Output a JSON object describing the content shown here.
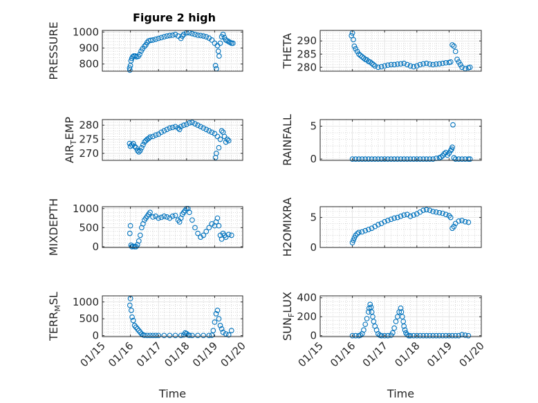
{
  "figure": {
    "title": "Figure 2 high"
  },
  "chart_data": [
    {
      "type": "scatter",
      "id": "pressure",
      "ylabel": "PRESSURE",
      "ylabel_parts": [
        [
          "PRESSURE",
          0
        ]
      ],
      "ylim": [
        755,
        1010
      ],
      "yticks": [
        800,
        900,
        1000
      ],
      "yticklabels": [
        "800",
        "900",
        "1000"
      ],
      "xlabel": "",
      "grid": true,
      "series": [
        {
          "x": [
            15.97,
            15.98,
            16.0,
            16.02,
            16.05,
            16.08,
            16.12,
            16.17,
            16.22,
            16.28,
            16.33,
            16.38,
            16.43,
            16.5,
            16.55,
            16.6,
            16.65,
            16.72,
            16.8,
            16.9,
            17.0,
            17.1,
            17.2,
            17.3,
            17.4,
            17.5,
            17.6,
            17.7,
            17.8,
            17.85,
            17.9,
            18.0,
            18.1,
            18.2,
            18.3,
            18.4,
            18.5,
            18.6,
            18.7,
            18.8,
            18.9,
            19.0,
            19.03,
            19.06,
            19.1,
            19.13,
            19.16,
            19.2,
            19.25,
            19.3,
            19.35,
            19.4,
            19.45,
            19.5,
            19.55,
            19.6,
            19.65
          ],
          "y": [
            775,
            762,
            790,
            820,
            835,
            845,
            850,
            850,
            845,
            848,
            860,
            880,
            895,
            910,
            920,
            935,
            945,
            948,
            950,
            955,
            960,
            965,
            970,
            975,
            978,
            980,
            985,
            975,
            960,
            975,
            985,
            995,
            995,
            990,
            985,
            980,
            978,
            975,
            970,
            962,
            950,
            930,
            790,
            770,
            915,
            880,
            850,
            930,
            970,
            985,
            965,
            950,
            945,
            940,
            935,
            930,
            930
          ]
        }
      ]
    },
    {
      "type": "scatter",
      "id": "theta",
      "ylabel": "THETA",
      "ylabel_parts": [
        [
          "THETA",
          0
        ]
      ],
      "ylim": [
        278.5,
        294
      ],
      "yticks": [
        280,
        285,
        290
      ],
      "yticklabels": [
        "280",
        "285",
        "290"
      ],
      "xlabel": "",
      "grid": true,
      "series": [
        {
          "x": [
            15.97,
            16.0,
            16.03,
            16.06,
            16.1,
            16.15,
            16.2,
            16.25,
            16.3,
            16.35,
            16.4,
            16.45,
            16.5,
            16.55,
            16.6,
            16.65,
            16.7,
            16.8,
            16.9,
            17.0,
            17.1,
            17.2,
            17.3,
            17.4,
            17.5,
            17.6,
            17.7,
            17.8,
            17.9,
            18.0,
            18.1,
            18.2,
            18.3,
            18.4,
            18.5,
            18.6,
            18.7,
            18.8,
            18.9,
            19.0,
            19.05,
            19.1,
            19.15,
            19.2,
            19.25,
            19.3,
            19.35,
            19.4,
            19.5,
            19.6,
            19.65
          ],
          "y": [
            292,
            293,
            290.5,
            288,
            287,
            286,
            285,
            284.5,
            284,
            283.5,
            283,
            282.8,
            282.2,
            282,
            281.5,
            281,
            280.5,
            280,
            280.2,
            280.5,
            280.8,
            281,
            281,
            281.2,
            281.3,
            281.5,
            281,
            280.5,
            280.2,
            280.5,
            281,
            281.3,
            281.5,
            281.2,
            281,
            281.2,
            281.3,
            281.5,
            281.7,
            281.8,
            282,
            288.5,
            288,
            286,
            283,
            282,
            281,
            280,
            279.5,
            279.8,
            280
          ]
        }
      ]
    },
    {
      "type": "scatter",
      "id": "air_temp",
      "ylabel": "AIR_TEMP",
      "ylabel_parts": [
        [
          "AIR",
          0
        ],
        [
          "T",
          1
        ],
        [
          "EMP",
          0
        ]
      ],
      "ylim": [
        267.5,
        282
      ],
      "yticks": [
        270,
        275,
        280
      ],
      "yticklabels": [
        "270",
        "275",
        "280"
      ],
      "xlabel": "",
      "grid": true,
      "series": [
        {
          "x": [
            15.97,
            16.0,
            16.05,
            16.1,
            16.15,
            16.2,
            16.25,
            16.3,
            16.35,
            16.4,
            16.45,
            16.5,
            16.55,
            16.6,
            16.65,
            16.7,
            16.8,
            16.9,
            17.0,
            17.1,
            17.2,
            17.3,
            17.4,
            17.5,
            17.6,
            17.7,
            17.75,
            17.8,
            17.9,
            18.0,
            18.1,
            18.2,
            18.3,
            18.4,
            18.5,
            18.6,
            18.7,
            18.8,
            18.9,
            19.0,
            19.03,
            19.06,
            19.1,
            19.15,
            19.2,
            19.25,
            19.3,
            19.35,
            19.4,
            19.45,
            19.5
          ],
          "y": [
            273.5,
            272.5,
            273,
            273.5,
            272.5,
            272,
            271,
            270.5,
            271,
            272,
            273,
            274,
            274.5,
            275,
            275.3,
            275.8,
            276,
            276.5,
            276.8,
            277.5,
            278,
            278.5,
            279,
            279.2,
            279.5,
            279,
            278.5,
            279.5,
            280,
            280.3,
            280.8,
            281,
            280.5,
            280,
            279.5,
            279,
            278.5,
            278,
            277.5,
            277,
            268.5,
            270,
            276,
            272,
            275,
            278,
            277.5,
            276,
            274,
            275,
            274.5
          ]
        }
      ]
    },
    {
      "type": "scatter",
      "id": "rainfall",
      "ylabel": "RAINFALL",
      "ylabel_parts": [
        [
          "RAINFALL",
          0
        ]
      ],
      "ylim": [
        -0.2,
        6
      ],
      "yticks": [
        0,
        5
      ],
      "yticklabels": [
        "0",
        "5"
      ],
      "xlabel": "",
      "grid": true,
      "series": [
        {
          "x": [
            16.0,
            16.1,
            16.2,
            16.3,
            16.4,
            16.5,
            16.6,
            16.7,
            16.8,
            16.9,
            17.0,
            17.1,
            17.2,
            17.3,
            17.4,
            17.5,
            17.6,
            17.7,
            17.8,
            17.9,
            18.0,
            18.1,
            18.2,
            18.3,
            18.4,
            18.5,
            18.6,
            18.7,
            18.75,
            18.8,
            18.85,
            18.9,
            18.95,
            19.0,
            19.05,
            19.08,
            19.1,
            19.12,
            19.15,
            19.2,
            19.3,
            19.4,
            19.5,
            19.6,
            19.65
          ],
          "y": [
            0,
            0,
            0,
            0,
            0,
            0,
            0,
            0,
            0,
            0,
            0,
            0,
            0,
            0,
            0,
            0,
            0,
            0,
            0,
            0,
            0,
            0,
            0,
            0,
            0,
            0,
            0.1,
            0.2,
            0.3,
            0.5,
            0.8,
            1.0,
            0.6,
            0.9,
            1.3,
            1.5,
            1.8,
            5.2,
            0.2,
            0,
            0,
            0,
            0,
            0,
            0
          ]
        }
      ]
    },
    {
      "type": "scatter",
      "id": "mixdepth",
      "ylabel": "MIXDEPTH",
      "ylabel_parts": [
        [
          "MIXDEPTH",
          0
        ]
      ],
      "ylim": [
        -20,
        1050
      ],
      "yticks": [
        0,
        500,
        1000
      ],
      "yticklabels": [
        "0",
        "500",
        "1000"
      ],
      "xlabel": "",
      "grid": true,
      "series": [
        {
          "x": [
            15.98,
            16.0,
            16.02,
            16.05,
            16.1,
            16.15,
            16.2,
            16.25,
            16.3,
            16.35,
            16.4,
            16.45,
            16.5,
            16.55,
            16.6,
            16.65,
            16.7,
            16.8,
            16.9,
            17.0,
            17.1,
            17.2,
            17.3,
            17.4,
            17.5,
            17.6,
            17.7,
            17.75,
            17.8,
            17.85,
            17.9,
            17.95,
            18.0,
            18.05,
            18.1,
            18.2,
            18.3,
            18.4,
            18.5,
            18.6,
            18.7,
            18.8,
            18.9,
            19.0,
            19.05,
            19.1,
            19.15,
            19.2,
            19.25,
            19.3,
            19.35,
            19.4,
            19.5,
            19.6
          ],
          "y": [
            350,
            550,
            40,
            0,
            10,
            0,
            0,
            50,
            150,
            300,
            500,
            600,
            700,
            750,
            800,
            850,
            900,
            780,
            800,
            750,
            770,
            800,
            780,
            750,
            800,
            820,
            700,
            650,
            750,
            850,
            900,
            950,
            1000,
            1000,
            900,
            700,
            500,
            350,
            250,
            300,
            400,
            500,
            600,
            550,
            650,
            750,
            550,
            300,
            200,
            350,
            300,
            250,
            320,
            300
          ]
        }
      ]
    },
    {
      "type": "scatter",
      "id": "h2omixra",
      "ylabel": "H2OMIXRA",
      "ylabel_parts": [
        [
          "H2OMIXRA",
          0
        ]
      ],
      "ylim": [
        0,
        6.8
      ],
      "yticks": [
        0,
        5
      ],
      "yticklabels": [
        "0",
        "5"
      ],
      "xlabel": "",
      "grid": true,
      "series": [
        {
          "x": [
            16.0,
            16.03,
            16.06,
            16.1,
            16.15,
            16.2,
            16.3,
            16.4,
            16.5,
            16.6,
            16.7,
            16.8,
            16.9,
            17.0,
            17.1,
            17.2,
            17.3,
            17.4,
            17.5,
            17.6,
            17.7,
            17.8,
            17.9,
            18.0,
            18.1,
            18.2,
            18.3,
            18.4,
            18.5,
            18.6,
            18.7,
            18.8,
            18.9,
            19.0,
            19.05,
            19.1,
            19.15,
            19.2,
            19.3,
            19.4,
            19.5,
            19.6
          ],
          "y": [
            0.8,
            1.2,
            1.6,
            2.0,
            2.3,
            2.5,
            2.6,
            2.8,
            3.0,
            3.2,
            3.5,
            3.8,
            4.0,
            4.3,
            4.5,
            4.7,
            4.9,
            5.0,
            5.2,
            5.4,
            5.5,
            5.2,
            5.4,
            5.6,
            5.9,
            6.2,
            6.3,
            6.2,
            6.0,
            5.9,
            5.8,
            5.7,
            5.5,
            5.3,
            5.0,
            3.2,
            3.5,
            4.0,
            4.4,
            4.5,
            4.3,
            4.2
          ]
        }
      ]
    },
    {
      "type": "scatter",
      "id": "terr_msl",
      "ylabel": "TERR_MSL",
      "ylabel_parts": [
        [
          "TERR",
          0
        ],
        [
          "M",
          1
        ],
        [
          "SL",
          0
        ]
      ],
      "ylim": [
        -30,
        1180
      ],
      "yticks": [
        0,
        500,
        1000
      ],
      "yticklabels": [
        "0",
        "500",
        "1000"
      ],
      "xlabel": "Time",
      "grid": true,
      "series": [
        {
          "x": [
            15.98,
            16.0,
            16.03,
            16.06,
            16.1,
            16.15,
            16.2,
            16.25,
            16.3,
            16.35,
            16.4,
            16.45,
            16.5,
            16.6,
            16.7,
            16.8,
            16.9,
            17.0,
            17.2,
            17.4,
            17.6,
            17.8,
            17.9,
            17.95,
            18.0,
            18.05,
            18.1,
            18.2,
            18.4,
            18.6,
            18.8,
            18.9,
            18.95,
            19.0,
            19.05,
            19.1,
            19.15,
            19.2,
            19.25,
            19.3,
            19.4,
            19.5,
            19.6
          ],
          "y": [
            900,
            1100,
            750,
            550,
            450,
            300,
            250,
            200,
            150,
            100,
            50,
            20,
            10,
            5,
            5,
            5,
            5,
            5,
            5,
            5,
            5,
            5,
            20,
            80,
            60,
            20,
            10,
            5,
            5,
            5,
            5,
            10,
            150,
            400,
            650,
            750,
            500,
            300,
            200,
            100,
            50,
            20,
            150
          ]
        }
      ]
    },
    {
      "type": "scatter",
      "id": "sun_flux",
      "ylabel": "SUN_FLUX",
      "ylabel_parts": [
        [
          "SUN",
          0
        ],
        [
          "F",
          1
        ],
        [
          "LUX",
          0
        ]
      ],
      "ylim": [
        -10,
        420
      ],
      "yticks": [
        0,
        200,
        400
      ],
      "yticklabels": [
        "0",
        "200",
        "400"
      ],
      "xlabel": "Time",
      "grid": true,
      "series": [
        {
          "x": [
            16.0,
            16.1,
            16.2,
            16.25,
            16.3,
            16.35,
            16.4,
            16.45,
            16.5,
            16.52,
            16.55,
            16.58,
            16.6,
            16.63,
            16.66,
            16.7,
            16.75,
            16.8,
            16.85,
            16.9,
            17.0,
            17.1,
            17.2,
            17.25,
            17.3,
            17.35,
            17.4,
            17.45,
            17.5,
            17.52,
            17.55,
            17.58,
            17.6,
            17.63,
            17.66,
            17.7,
            17.75,
            17.8,
            17.9,
            18.0,
            18.1,
            18.2,
            18.3,
            18.4,
            18.5,
            18.6,
            18.7,
            18.8,
            18.9,
            19.0,
            19.1,
            19.2,
            19.3,
            19.4,
            19.5,
            19.6
          ],
          "y": [
            0,
            0,
            0,
            5,
            20,
            60,
            120,
            180,
            250,
            290,
            330,
            300,
            250,
            200,
            150,
            100,
            60,
            20,
            5,
            0,
            0,
            0,
            5,
            30,
            80,
            150,
            200,
            250,
            290,
            250,
            200,
            150,
            100,
            60,
            30,
            10,
            0,
            0,
            0,
            0,
            0,
            0,
            0,
            0,
            0,
            0,
            0,
            0,
            0,
            0,
            0,
            0,
            0,
            10,
            5,
            0
          ]
        }
      ]
    }
  ],
  "axes": {
    "x_range": [
      15,
      20
    ],
    "x_ticks": [
      15,
      16,
      17,
      18,
      19,
      20
    ],
    "x_tick_labels": [
      "01/15",
      "01/16",
      "01/17",
      "01/18",
      "01/19",
      "01/20"
    ]
  },
  "colors": {
    "marker": "#0072BD",
    "grid_major": "#dedede",
    "grid_minor": "#bdbdbd",
    "axis": "#262626"
  }
}
